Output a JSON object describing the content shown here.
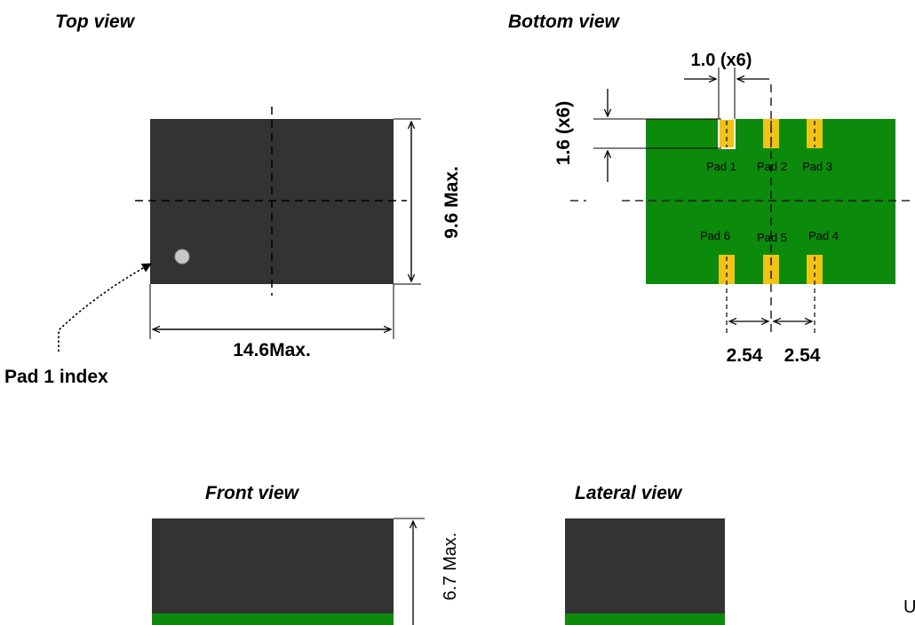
{
  "views": {
    "top": "Top view",
    "bottom": "Bottom view",
    "front": "Front view",
    "lateral": "Lateral view"
  },
  "dimensions": {
    "top_width": "14.6Max.",
    "top_height": "9.6 Max.",
    "pad_width": "1.0 (x6)",
    "pad_length": "1.6 (x6)",
    "pitch_left": "2.54",
    "pitch_right": "2.54",
    "front_height": "6.7 Max."
  },
  "labels": {
    "pad1_index": "Pad 1 index",
    "pad1": "Pad 1",
    "pad2": "Pad 2",
    "pad3": "Pad 3",
    "pad4": "Pad 4",
    "pad5": "Pad 5",
    "pad6": "Pad 6",
    "corner_fragment": "U"
  },
  "colors": {
    "body": "#333333",
    "pcb_green": "#0c8a0c",
    "pad_gold": "#f2c314",
    "index_dot": "#c8c8c8"
  }
}
